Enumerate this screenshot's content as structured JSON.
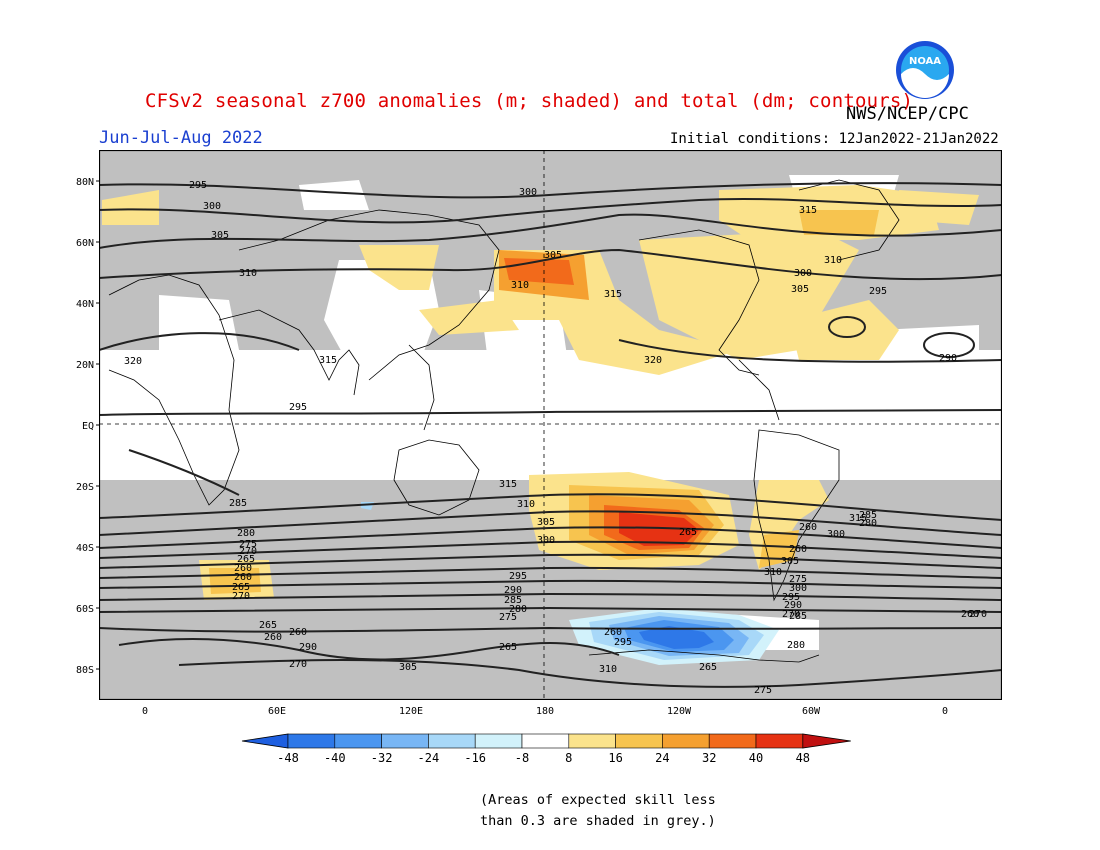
{
  "header": {
    "title": "CFSv2 seasonal z700 anomalies (m; shaded) and total (dm; contours)",
    "agency": "NWS/NCEP/CPC",
    "period": "Jun-Jul-Aug 2022",
    "initial_conditions": "Initial conditions: 12Jan2022-21Jan2022",
    "logo_text": "NOAA"
  },
  "map": {
    "lat_labels": [
      "80N",
      "60N",
      "40N",
      "20N",
      "EQ",
      "20S",
      "40S",
      "60S",
      "80S"
    ],
    "lon_labels": [
      "0",
      "60E",
      "120E",
      "180",
      "120W",
      "60W",
      "0"
    ],
    "contour_labels": [
      "295",
      "300",
      "305",
      "310",
      "315",
      "320",
      "295",
      "300",
      "305",
      "310",
      "315",
      "320",
      "315",
      "310",
      "305",
      "300",
      "295",
      "290",
      "285",
      "280",
      "275",
      "270",
      "265",
      "260",
      "260",
      "265",
      "270",
      "265",
      "260",
      "315",
      "310",
      "305",
      "300",
      "295",
      "290",
      "285",
      "280",
      "275",
      "270",
      "265",
      "260",
      "310",
      "305",
      "300",
      "295",
      "290",
      "285",
      "280",
      "275",
      "270",
      "265",
      "260",
      "260",
      "260",
      "315",
      "310",
      "305",
      "300",
      "295",
      "290",
      "285",
      "280",
      "275",
      "270",
      "265",
      "260"
    ],
    "colors": {
      "grey_skill": "#c0c0c0",
      "ocean_white": "#ffffff",
      "neg48": "#1e5fe0",
      "neg40": "#2e78e8",
      "neg32": "#4b96f0",
      "neg24": "#78b6f5",
      "neg16": "#a8d8f8",
      "neg8": "#d2f2fb",
      "pos8": "#fbe38c",
      "pos16": "#f7c44f",
      "pos24": "#f5a030",
      "pos32": "#f26a1b",
      "pos40": "#e63213",
      "pos48": "#c01010"
    }
  },
  "colorbar": {
    "ticks": [
      "-48",
      "-40",
      "-32",
      "-24",
      "-16",
      "-8",
      "8",
      "16",
      "24",
      "32",
      "40",
      "48"
    ],
    "colors": [
      "#1e5fe0",
      "#2e78e8",
      "#4b96f0",
      "#78b6f5",
      "#a8d8f8",
      "#d2f2fb",
      "#ffffff",
      "#fbe38c",
      "#f7c44f",
      "#f5a030",
      "#f26a1b",
      "#e63213",
      "#c01010"
    ]
  },
  "footnote": {
    "line1": "(Areas of expected skill less",
    "line2": "than 0.3 are shaded in grey.)"
  }
}
